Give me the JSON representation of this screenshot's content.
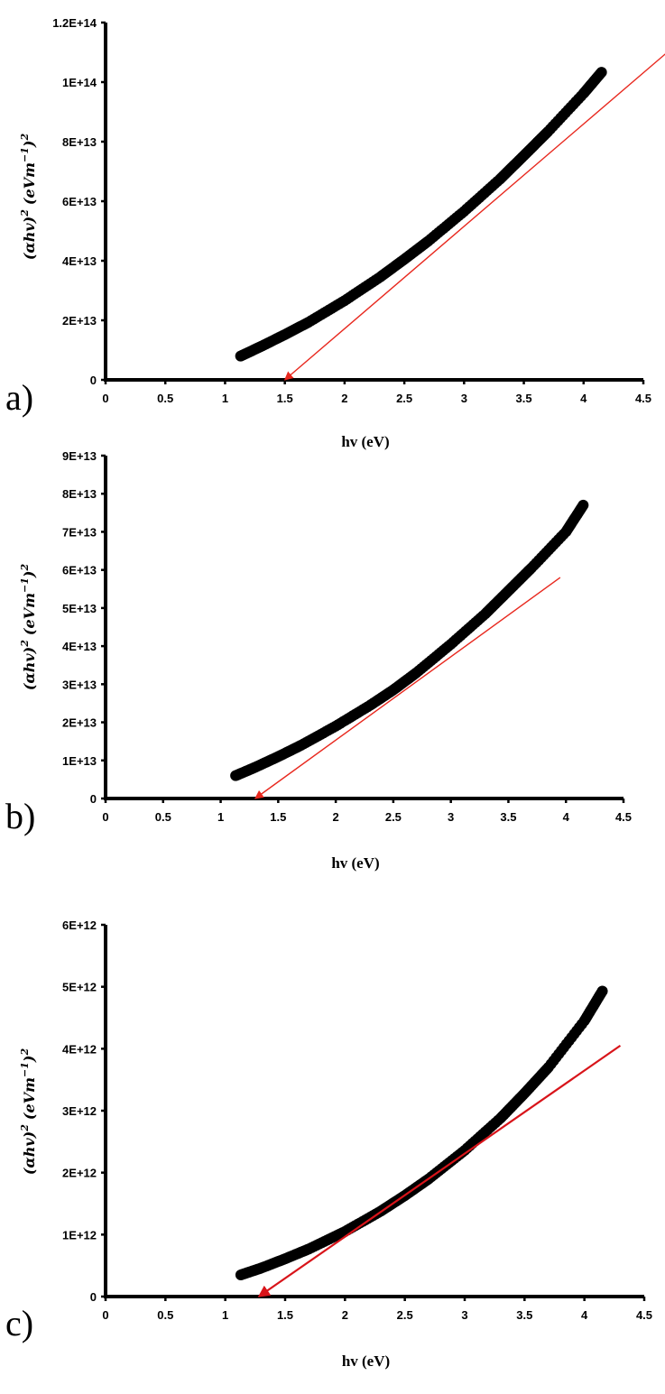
{
  "chart_data": [
    {
      "type": "scatter",
      "panel_label": "a)",
      "xlabel": "hv (eV)",
      "ylabel_base": "(αhv)",
      "ylabel_sup1": "2",
      "ylabel_unit": "(eVm",
      "ylabel_unit_sup": "−1",
      "ylabel_close": ")",
      "ylabel_sup2": "2",
      "xlim": [
        0,
        4.5
      ],
      "ylim": [
        0,
        120000000000000.0
      ],
      "x_ticks": [
        0,
        0.5,
        1,
        1.5,
        2,
        2.5,
        3,
        3.5,
        4,
        4.5
      ],
      "x_tick_labels": [
        "0",
        "0.5",
        "1",
        "1.5",
        "2",
        "2.5",
        "3",
        "3.5",
        "4",
        "4.5"
      ],
      "y_ticks": [
        0,
        20000000000000.0,
        40000000000000.0,
        60000000000000.0,
        80000000000000.0,
        100000000000000.0,
        120000000000000.0
      ],
      "y_tick_labels": [
        "0",
        "2E+13",
        "4E+13",
        "6E+13",
        "8E+13",
        "1E+14",
        "1.2E+14"
      ],
      "series": [
        {
          "kind": "data",
          "color": "#000000",
          "x": [
            1.13,
            1.3,
            1.5,
            1.7,
            2.0,
            2.3,
            2.5,
            2.7,
            3.0,
            3.3,
            3.5,
            3.7,
            4.0,
            4.15
          ],
          "y": [
            8000000000000.0,
            11200000000000.0,
            15200000000000.0,
            19400000000000.0,
            26600000000000.0,
            34600000000000.0,
            40500000000000.0,
            46600000000000.0,
            56600000000000.0,
            67400000000000.0,
            75300000000000.0,
            83300000000000.0,
            96200000000000.0,
            103300000000000.0
          ]
        },
        {
          "kind": "tangent",
          "color": "#e8281e",
          "x": [
            1.5,
            4.7
          ],
          "y": [
            0,
            110000000000000.0
          ]
        }
      ],
      "intercept_x": 1.5,
      "grid": false,
      "legend": "none"
    },
    {
      "type": "scatter",
      "panel_label": "b)",
      "xlabel": "hv (eV)",
      "ylabel_base": "(αhv)",
      "ylabel_sup1": "2",
      "ylabel_unit": "(eVm",
      "ylabel_unit_sup": "−1",
      "ylabel_close": ")",
      "ylabel_sup2": "2",
      "xlim": [
        0,
        4.5
      ],
      "ylim": [
        0,
        90000000000000.0
      ],
      "x_ticks": [
        0,
        0.5,
        1,
        1.5,
        2,
        2.5,
        3,
        3.5,
        4,
        4.5
      ],
      "x_tick_labels": [
        "0",
        "0.5",
        "1",
        "1.5",
        "2",
        "2.5",
        "3",
        "3.5",
        "4",
        "4.5"
      ],
      "y_ticks": [
        0,
        10000000000000.0,
        20000000000000.0,
        30000000000000.0,
        40000000000000.0,
        50000000000000.0,
        60000000000000.0,
        70000000000000.0,
        80000000000000.0,
        90000000000000.0
      ],
      "y_tick_labels": [
        "0",
        "1E+13",
        "2E+13",
        "3E+13",
        "4E+13",
        "5E+13",
        "6E+13",
        "7E+13",
        "8E+13",
        "9E+13"
      ],
      "series": [
        {
          "kind": "data",
          "color": "#000000",
          "x": [
            1.13,
            1.3,
            1.5,
            1.7,
            2.0,
            2.3,
            2.5,
            2.7,
            3.0,
            3.3,
            3.5,
            3.7,
            4.0,
            4.15
          ],
          "y": [
            6000000000000.0,
            8200000000000.0,
            11000000000000.0,
            14000000000000.0,
            19000000000000.0,
            24500000000000.0,
            28500000000000.0,
            33000000000000.0,
            40500000000000.0,
            48500000000000.0,
            54500000000000.0,
            60500000000000.0,
            70000000000000.0,
            77000000000000.0
          ]
        },
        {
          "kind": "tangent",
          "color": "#e8281e",
          "x": [
            1.3,
            3.95
          ],
          "y": [
            0,
            58000000000000.0
          ]
        }
      ],
      "intercept_x": 1.3,
      "grid": false,
      "legend": "none"
    },
    {
      "type": "scatter",
      "panel_label": "c)",
      "xlabel": "hv (eV)",
      "ylabel_base": "(αhv)",
      "ylabel_sup1": "2",
      "ylabel_unit": "(eVm",
      "ylabel_unit_sup": "−1",
      "ylabel_close": ")",
      "ylabel_sup2": "2",
      "xlim": [
        0,
        4.5
      ],
      "ylim": [
        0,
        6000000000000.0
      ],
      "x_ticks": [
        0,
        0.5,
        1,
        1.5,
        2,
        2.5,
        3,
        3.5,
        4,
        4.5
      ],
      "x_tick_labels": [
        "0",
        "0.5",
        "1",
        "1.5",
        "2",
        "2.5",
        "3",
        "3.5",
        "4",
        "4.5"
      ],
      "y_ticks": [
        0,
        1000000000000.0,
        2000000000000.0,
        3000000000000.0,
        4000000000000.0,
        5000000000000.0,
        6000000000000.0
      ],
      "y_tick_labels": [
        "0",
        "1E+12",
        "2E+12",
        "3E+12",
        "4E+12",
        "5E+12",
        "6E+12"
      ],
      "series": [
        {
          "kind": "data",
          "color": "#000000",
          "x": [
            1.13,
            1.3,
            1.5,
            1.7,
            2.0,
            2.3,
            2.5,
            2.7,
            3.0,
            3.3,
            3.5,
            3.7,
            4.0,
            4.15
          ],
          "y": [
            350000000000.0,
            460000000000.0,
            610000000000.0,
            770000000000.0,
            1050000000000.0,
            1380000000000.0,
            1630000000000.0,
            1900000000000.0,
            2360000000000.0,
            2880000000000.0,
            3280000000000.0,
            3700000000000.0,
            4450000000000.0,
            4930000000000.0
          ]
        },
        {
          "kind": "tangent",
          "color": "#d8141a",
          "x": [
            1.28,
            4.3
          ],
          "y": [
            0,
            4050000000000.0
          ]
        }
      ],
      "intercept_x": 1.28,
      "grid": false,
      "legend": "none"
    }
  ]
}
